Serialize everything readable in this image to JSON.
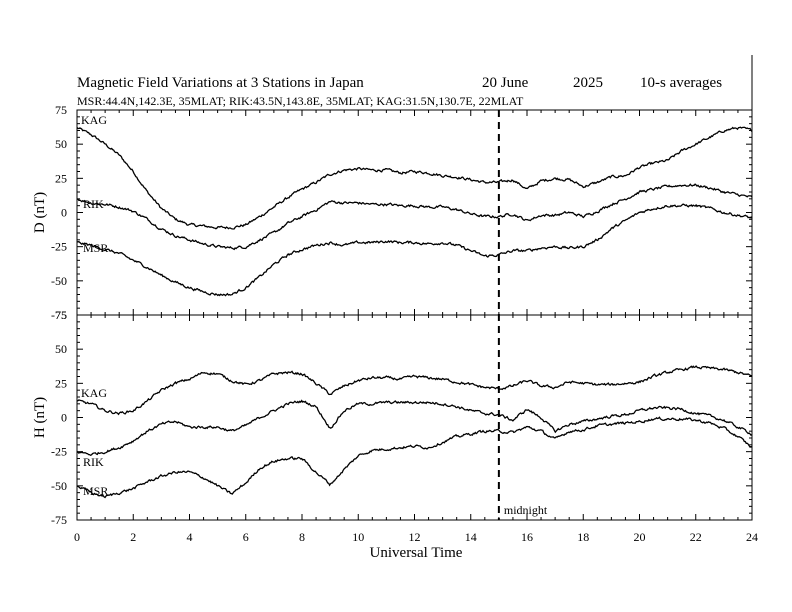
{
  "chart_data": {
    "type": "line",
    "title": "Magnetic Field Variations at 3 Stations in Japan",
    "date": "20 June",
    "year": "2025",
    "averaging": "10-s averages",
    "subtitle": "MSR:44.4N,142.3E, 35MLAT;  RIK:43.5N,143.8E, 35MLAT;  KAG:31.5N,130.7E, 22MLAT",
    "xlabel": "Universal Time",
    "xlim": [
      0,
      24
    ],
    "xticks": [
      "0",
      "2",
      "4",
      "6",
      "8",
      "10",
      "12",
      "14",
      "16",
      "18",
      "20",
      "22",
      "24"
    ],
    "grid": false,
    "annotation": {
      "x": 15,
      "label": "midnight"
    },
    "panels": [
      {
        "name": "D",
        "ylabel": "D (nT)",
        "ylim": [
          -75,
          75
        ],
        "yticks": [
          "75",
          "50",
          "25",
          "0",
          "-25",
          "-50",
          "-75"
        ],
        "series": [
          {
            "name": "KAG",
            "x": [
              0,
              0.5,
              1,
              1.5,
              2,
              2.5,
              3,
              3.5,
              4,
              4.5,
              5,
              5.5,
              6,
              6.5,
              7,
              7.5,
              8,
              8.5,
              9,
              9.5,
              10,
              10.5,
              11,
              11.5,
              12,
              12.5,
              13,
              13.5,
              14,
              14.5,
              15,
              15.5,
              16,
              16.5,
              17,
              17.5,
              18,
              18.5,
              19,
              19.5,
              20,
              20.5,
              21,
              21.5,
              22,
              22.5,
              23,
              23.5,
              24
            ],
            "values": [
              62,
              57,
              50,
              42,
              30,
              15,
              3,
              -5,
              -9,
              -10,
              -11,
              -11,
              -9,
              -3,
              4,
              11,
              17,
              22,
              28,
              31,
              32,
              31,
              31,
              29,
              30,
              29,
              27,
              26,
              24,
              22,
              22,
              24,
              17,
              23,
              25,
              24,
              19,
              22,
              26,
              27,
              33,
              36,
              38,
              45,
              50,
              55,
              60,
              62,
              60
            ]
          },
          {
            "name": "RIK",
            "x": [
              0,
              0.5,
              1,
              1.5,
              2,
              2.5,
              3,
              3.5,
              4,
              4.5,
              5,
              5.5,
              6,
              6.5,
              7,
              7.5,
              8,
              8.5,
              9,
              9.5,
              10,
              10.5,
              11,
              11.5,
              12,
              12.5,
              13,
              13.5,
              14,
              14.5,
              15,
              15.5,
              16,
              16.5,
              17,
              17.5,
              18,
              18.5,
              19,
              19.5,
              20,
              20.5,
              21,
              21.5,
              22,
              22.5,
              23,
              23.5,
              24
            ],
            "values": [
              10,
              7,
              6,
              4,
              1,
              -5,
              -12,
              -17,
              -20,
              -23,
              -25,
              -26,
              -25,
              -20,
              -15,
              -8,
              -3,
              2,
              8,
              7,
              7,
              6,
              6,
              5,
              5,
              4,
              4,
              2,
              -1,
              -3,
              -3,
              -1,
              -6,
              -2,
              -2,
              0,
              -3,
              1,
              6,
              10,
              15,
              17,
              19,
              20,
              20,
              18,
              15,
              13,
              11
            ]
          },
          {
            "name": "MSR",
            "x": [
              0,
              0.5,
              1,
              1.5,
              2,
              2.5,
              3,
              3.5,
              4,
              4.5,
              5,
              5.5,
              6,
              6.5,
              7,
              7.5,
              8,
              8.5,
              9,
              9.5,
              10,
              10.5,
              11,
              11.5,
              12,
              12.5,
              13,
              13.5,
              14,
              14.5,
              15,
              15.5,
              16,
              16.5,
              17,
              17.5,
              18,
              18.5,
              19,
              19.5,
              20,
              20.5,
              21,
              21.5,
              22,
              22.5,
              23,
              23.5,
              24
            ],
            "values": [
              -22,
              -24,
              -27,
              -30,
              -35,
              -40,
              -46,
              -51,
              -55,
              -58,
              -60,
              -60,
              -55,
              -47,
              -38,
              -31,
              -27,
              -24,
              -22,
              -24,
              -22,
              -22,
              -21,
              -22,
              -22,
              -23,
              -22,
              -24,
              -28,
              -32,
              -31,
              -28,
              -28,
              -26,
              -25,
              -26,
              -25,
              -20,
              -12,
              -6,
              0,
              3,
              5,
              5,
              5,
              3,
              0,
              -2,
              -4
            ]
          }
        ]
      },
      {
        "name": "H",
        "ylabel": "H (nT)",
        "ylim": [
          -75,
          75
        ],
        "yticks": [
          "75",
          "50",
          "25",
          "0",
          "-25",
          "-50",
          "-75"
        ],
        "series": [
          {
            "name": "KAG",
            "x": [
              0,
              0.5,
              1,
              1.5,
              2,
              2.5,
              3,
              3.5,
              4,
              4.5,
              5,
              5.5,
              6,
              6.5,
              7,
              7.5,
              8,
              8.5,
              9,
              9.5,
              10,
              10.5,
              11,
              11.5,
              12,
              12.5,
              13,
              13.5,
              14,
              14.5,
              15,
              15.5,
              16,
              16.5,
              17,
              17.5,
              18,
              18.5,
              19,
              19.5,
              20,
              20.5,
              21,
              21.5,
              22,
              22.5,
              23,
              23.5,
              24
            ],
            "values": [
              12,
              10,
              5,
              3,
              5,
              12,
              20,
              25,
              28,
              33,
              32,
              27,
              24,
              27,
              32,
              33,
              32,
              25,
              17,
              23,
              27,
              29,
              29,
              28,
              30,
              29,
              28,
              26,
              24,
              22,
              21,
              23,
              27,
              23,
              22,
              26,
              25,
              24,
              24,
              25,
              26,
              30,
              33,
              35,
              37,
              36,
              35,
              33,
              30
            ]
          },
          {
            "name": "RIK",
            "x": [
              0,
              0.5,
              1,
              1.5,
              2,
              2.5,
              3,
              3.5,
              4,
              4.5,
              5,
              5.5,
              6,
              6.5,
              7,
              7.5,
              8,
              8.5,
              9,
              9.5,
              10,
              10.5,
              11,
              11.5,
              12,
              12.5,
              13,
              13.5,
              14,
              14.5,
              15,
              15.5,
              16,
              16.5,
              17,
              17.5,
              18,
              18.5,
              19,
              19.5,
              20,
              20.5,
              21,
              21.5,
              22,
              22.5,
              23,
              23.5,
              24
            ],
            "values": [
              -25,
              -27,
              -25,
              -22,
              -17,
              -10,
              -5,
              -3,
              -7,
              -7,
              -7,
              -10,
              -6,
              0,
              5,
              10,
              12,
              8,
              -8,
              5,
              10,
              10,
              11,
              11,
              11,
              11,
              10,
              8,
              5,
              3,
              2,
              -2,
              6,
              0,
              -10,
              -5,
              -3,
              -1,
              1,
              2,
              5,
              7,
              7,
              6,
              3,
              1,
              -2,
              -7,
              -12
            ]
          },
          {
            "name": "MSR",
            "x": [
              0,
              0.5,
              1,
              1.5,
              2,
              2.5,
              3,
              3.5,
              4,
              4.5,
              5,
              5.5,
              6,
              6.5,
              7,
              7.5,
              8,
              8.5,
              9,
              9.5,
              10,
              10.5,
              11,
              11.5,
              12,
              12.5,
              13,
              13.5,
              14,
              14.5,
              15,
              15.5,
              16,
              16.5,
              17,
              17.5,
              18,
              18.5,
              19,
              19.5,
              20,
              20.5,
              21,
              21.5,
              22,
              22.5,
              23,
              23.5,
              24
            ],
            "values": [
              -50,
              -55,
              -58,
              -55,
              -52,
              -47,
              -43,
              -40,
              -40,
              -44,
              -50,
              -56,
              -48,
              -37,
              -32,
              -30,
              -30,
              -40,
              -49,
              -38,
              -28,
              -24,
              -23,
              -22,
              -21,
              -22,
              -18,
              -14,
              -12,
              -10,
              -10,
              -11,
              -7,
              -10,
              -16,
              -10,
              -9,
              -6,
              -5,
              -4,
              -3,
              -1,
              -1,
              -1,
              -2,
              -4,
              -8,
              -14,
              -22
            ]
          }
        ]
      }
    ],
    "station_labels": {
      "D": [
        "KAG",
        "RIK",
        "MSR"
      ],
      "H": [
        "KAG",
        "RIK",
        "MSR"
      ]
    }
  }
}
